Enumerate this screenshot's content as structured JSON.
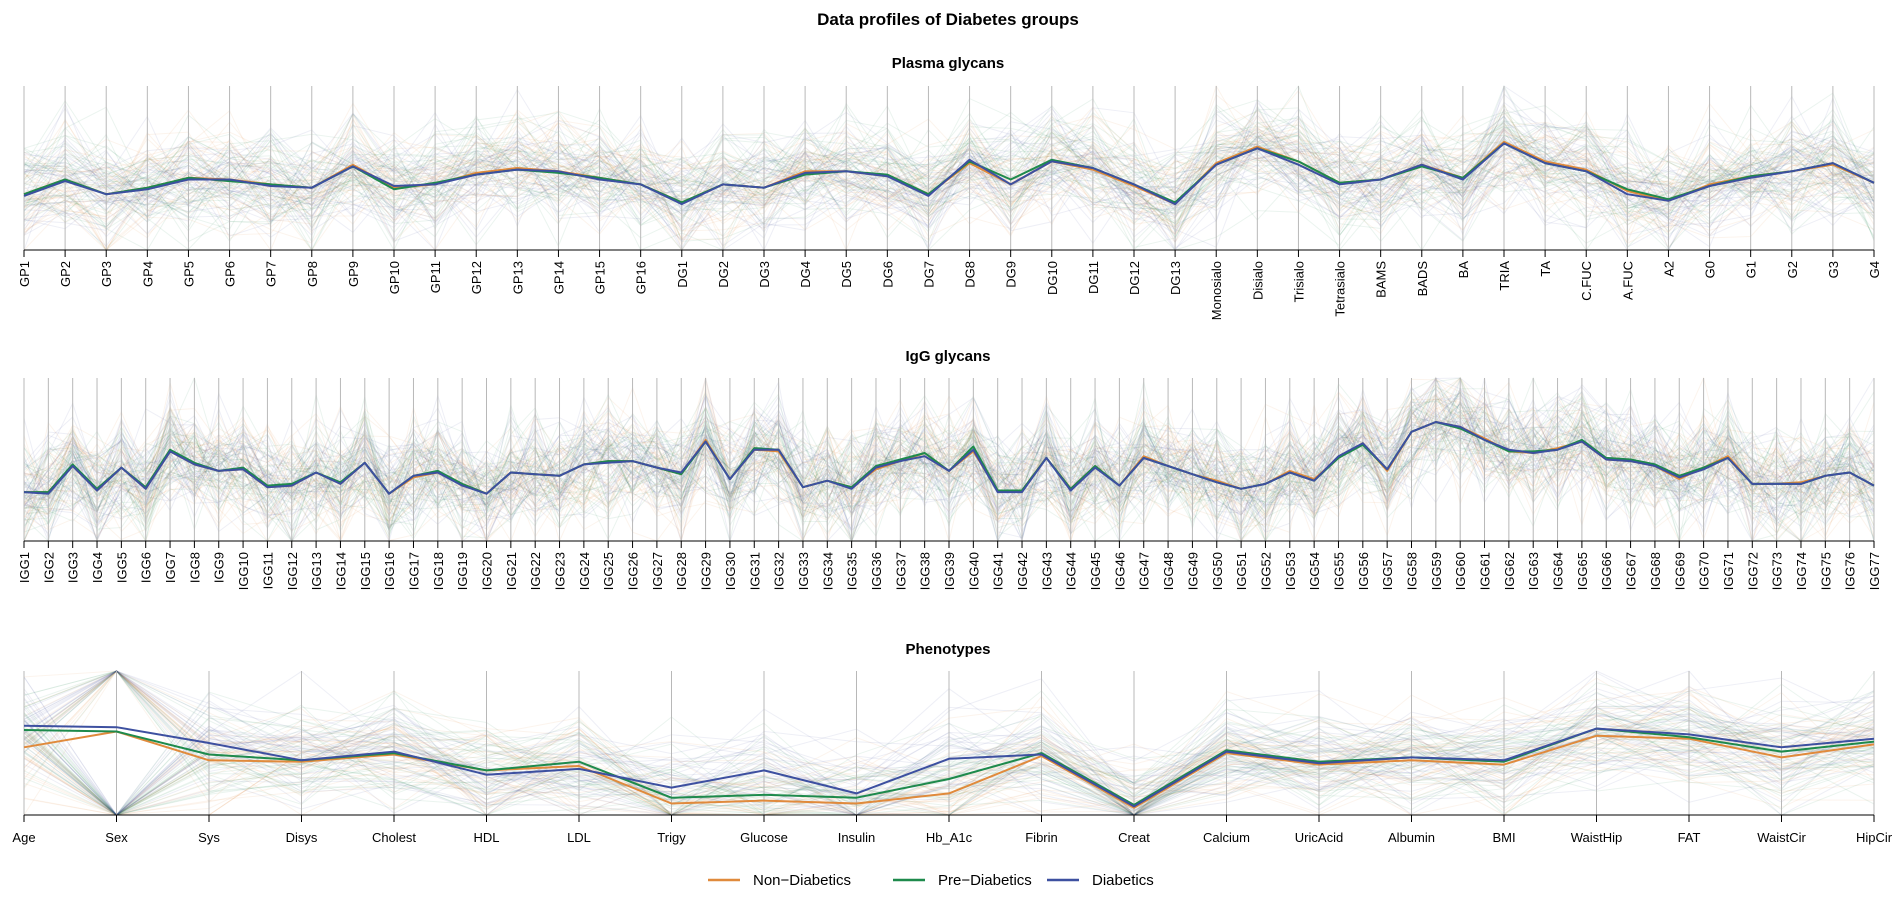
{
  "chart_data": {
    "type": "line",
    "subtype": "parallel-coordinates",
    "title": "Data profiles of Diabetes groups",
    "legend": {
      "placement": "bottom",
      "entries": [
        {
          "name": "Non−Diabetics",
          "color": "#E08A3C"
        },
        {
          "name": "Pre−Diabetics",
          "color": "#1E8A4C"
        },
        {
          "name": "Diabetics",
          "color": "#3D50A0"
        }
      ]
    },
    "panels": [
      {
        "title": "Plasma glycans",
        "ylim": [
          0,
          1
        ],
        "axes": [
          "GP1",
          "GP2",
          "GP3",
          "GP4",
          "GP5",
          "GP6",
          "GP7",
          "GP8",
          "GP9",
          "GP10",
          "GP11",
          "GP12",
          "GP13",
          "GP14",
          "GP15",
          "GP16",
          "DG1",
          "DG2",
          "DG3",
          "DG4",
          "DG5",
          "DG6",
          "DG7",
          "DG8",
          "DG9",
          "DG10",
          "DG11",
          "DG12",
          "DG13",
          "Monosialo",
          "Disialo",
          "Trisialo",
          "Tetrasialo",
          "BAMS",
          "BADS",
          "BA",
          "TRIA",
          "TA",
          "C.FUC",
          "A.FUC",
          "A2",
          "G0",
          "G1",
          "G2",
          "G3",
          "G4"
        ],
        "series": [
          {
            "name": "Non−Diabetics",
            "values": [
              0.34,
              0.43,
              0.34,
              0.38,
              0.44,
              0.43,
              0.4,
              0.38,
              0.52,
              0.38,
              0.4,
              0.47,
              0.5,
              0.48,
              0.44,
              0.4,
              0.29,
              0.4,
              0.38,
              0.48,
              0.48,
              0.45,
              0.34,
              0.53,
              0.4,
              0.54,
              0.49,
              0.39,
              0.28,
              0.53,
              0.63,
              0.54,
              0.41,
              0.43,
              0.52,
              0.44,
              0.66,
              0.54,
              0.49,
              0.36,
              0.3,
              0.4,
              0.45,
              0.48,
              0.52,
              0.41
            ]
          },
          {
            "name": "Pre−Diabetics",
            "values": [
              0.34,
              0.43,
              0.34,
              0.38,
              0.44,
              0.42,
              0.4,
              0.38,
              0.51,
              0.37,
              0.41,
              0.46,
              0.49,
              0.47,
              0.44,
              0.4,
              0.29,
              0.4,
              0.38,
              0.46,
              0.48,
              0.46,
              0.34,
              0.54,
              0.43,
              0.55,
              0.5,
              0.4,
              0.29,
              0.52,
              0.62,
              0.54,
              0.41,
              0.43,
              0.51,
              0.44,
              0.65,
              0.53,
              0.48,
              0.37,
              0.31,
              0.39,
              0.45,
              0.48,
              0.53,
              0.41
            ]
          },
          {
            "name": "Diabetics",
            "values": [
              0.33,
              0.42,
              0.34,
              0.37,
              0.43,
              0.43,
              0.39,
              0.38,
              0.51,
              0.39,
              0.4,
              0.46,
              0.49,
              0.48,
              0.43,
              0.4,
              0.28,
              0.4,
              0.38,
              0.47,
              0.48,
              0.45,
              0.33,
              0.55,
              0.4,
              0.54,
              0.5,
              0.4,
              0.28,
              0.52,
              0.62,
              0.52,
              0.4,
              0.43,
              0.52,
              0.43,
              0.65,
              0.53,
              0.48,
              0.34,
              0.3,
              0.39,
              0.44,
              0.48,
              0.53,
              0.41
            ]
          }
        ]
      },
      {
        "title": "IgG glycans",
        "ylim": [
          0,
          1
        ],
        "axes": [
          "IGG1",
          "IGG2",
          "IGG3",
          "IGG4",
          "IGG5",
          "IGG6",
          "IGG7",
          "IGG8",
          "IGG9",
          "IGG10",
          "IGG11",
          "IGG12",
          "IGG13",
          "IGG14",
          "IGG15",
          "IGG16",
          "IGG17",
          "IGG18",
          "IGG19",
          "IGG20",
          "IGG21",
          "IGG22",
          "IGG23",
          "IGG24",
          "IGG25",
          "IGG26",
          "IGG27",
          "IGG28",
          "IGG29",
          "IGG30",
          "IGG31",
          "IGG32",
          "IGG33",
          "IGG34",
          "IGG35",
          "IGG36",
          "IGG37",
          "IGG38",
          "IGG39",
          "IGG40",
          "IGG41",
          "IGG42",
          "IGG43",
          "IGG44",
          "IGG45",
          "IGG46",
          "IGG47",
          "IGG48",
          "IGG49",
          "IGG50",
          "IGG51",
          "IGG52",
          "IGG53",
          "IGG54",
          "IGG55",
          "IGG56",
          "IGG57",
          "IGG58",
          "IGG59",
          "IGG60",
          "IGG61",
          "IGG62",
          "IGG63",
          "IGG64",
          "IGG65",
          "IGG66",
          "IGG67",
          "IGG68",
          "IGG69",
          "IGG70",
          "IGG71",
          "IGG72",
          "IGG73",
          "IGG74",
          "IGG75",
          "IGG76",
          "IGG77"
        ],
        "series": [
          {
            "name": "Non−Diabetics",
            "values": [
              0.3,
              0.3,
              0.46,
              0.31,
              0.45,
              0.32,
              0.55,
              0.47,
              0.43,
              0.44,
              0.33,
              0.34,
              0.42,
              0.35,
              0.48,
              0.29,
              0.39,
              0.42,
              0.35,
              0.29,
              0.42,
              0.41,
              0.4,
              0.47,
              0.49,
              0.49,
              0.45,
              0.41,
              0.62,
              0.38,
              0.56,
              0.55,
              0.33,
              0.37,
              0.33,
              0.44,
              0.49,
              0.54,
              0.43,
              0.55,
              0.31,
              0.31,
              0.51,
              0.32,
              0.46,
              0.34,
              0.52,
              0.46,
              0.41,
              0.37,
              0.32,
              0.35,
              0.43,
              0.38,
              0.51,
              0.6,
              0.43,
              0.67,
              0.73,
              0.7,
              0.63,
              0.55,
              0.54,
              0.57,
              0.61,
              0.5,
              0.49,
              0.46,
              0.38,
              0.45,
              0.52,
              0.35,
              0.35,
              0.36,
              0.4,
              0.42,
              0.34
            ]
          },
          {
            "name": "Pre−Diabetics",
            "values": [
              0.3,
              0.3,
              0.47,
              0.32,
              0.45,
              0.33,
              0.56,
              0.48,
              0.43,
              0.45,
              0.34,
              0.35,
              0.42,
              0.36,
              0.48,
              0.29,
              0.4,
              0.43,
              0.35,
              0.29,
              0.42,
              0.41,
              0.4,
              0.47,
              0.49,
              0.49,
              0.45,
              0.41,
              0.61,
              0.38,
              0.57,
              0.56,
              0.33,
              0.37,
              0.33,
              0.46,
              0.5,
              0.54,
              0.43,
              0.58,
              0.31,
              0.31,
              0.51,
              0.32,
              0.46,
              0.34,
              0.51,
              0.46,
              0.41,
              0.36,
              0.32,
              0.35,
              0.42,
              0.37,
              0.51,
              0.59,
              0.44,
              0.67,
              0.73,
              0.69,
              0.62,
              0.55,
              0.55,
              0.56,
              0.62,
              0.51,
              0.5,
              0.47,
              0.4,
              0.45,
              0.51,
              0.35,
              0.35,
              0.35,
              0.4,
              0.42,
              0.34
            ]
          },
          {
            "name": "Diabetics",
            "values": [
              0.3,
              0.29,
              0.46,
              0.31,
              0.45,
              0.32,
              0.55,
              0.47,
              0.43,
              0.44,
              0.33,
              0.34,
              0.42,
              0.35,
              0.48,
              0.29,
              0.4,
              0.42,
              0.34,
              0.29,
              0.42,
              0.41,
              0.4,
              0.47,
              0.48,
              0.49,
              0.45,
              0.42,
              0.61,
              0.38,
              0.56,
              0.56,
              0.33,
              0.37,
              0.32,
              0.45,
              0.49,
              0.52,
              0.43,
              0.56,
              0.3,
              0.3,
              0.51,
              0.31,
              0.45,
              0.34,
              0.51,
              0.46,
              0.41,
              0.36,
              0.32,
              0.35,
              0.42,
              0.37,
              0.52,
              0.6,
              0.44,
              0.67,
              0.73,
              0.7,
              0.62,
              0.56,
              0.54,
              0.56,
              0.61,
              0.5,
              0.49,
              0.46,
              0.39,
              0.44,
              0.51,
              0.35,
              0.35,
              0.35,
              0.4,
              0.42,
              0.34
            ]
          }
        ]
      },
      {
        "title": "Phenotypes",
        "ylim": [
          0,
          1
        ],
        "axes": [
          "Age",
          "Sex",
          "Sys",
          "Disys",
          "Cholest",
          "HDL",
          "LDL",
          "Trigy",
          "Glucose",
          "Insulin",
          "Hb_A1c",
          "Fibrin",
          "Creat",
          "Calcium",
          "UricAcid",
          "Albumin",
          "BMI",
          "WaistHip",
          "FAT",
          "WaistCir",
          "HipCir"
        ],
        "series": [
          {
            "name": "Non−Diabetics",
            "values": [
              0.47,
              0.58,
              0.38,
              0.37,
              0.42,
              0.31,
              0.34,
              0.08,
              0.1,
              0.08,
              0.15,
              0.41,
              0.05,
              0.43,
              0.35,
              0.38,
              0.35,
              0.55,
              0.53,
              0.4,
              0.49
            ]
          },
          {
            "name": "Pre−Diabetics",
            "values": [
              0.59,
              0.58,
              0.42,
              0.38,
              0.43,
              0.31,
              0.37,
              0.12,
              0.14,
              0.12,
              0.25,
              0.43,
              0.07,
              0.45,
              0.37,
              0.4,
              0.37,
              0.6,
              0.54,
              0.44,
              0.51
            ]
          },
          {
            "name": "Diabetics",
            "values": [
              0.62,
              0.61,
              0.5,
              0.38,
              0.44,
              0.28,
              0.32,
              0.19,
              0.31,
              0.15,
              0.39,
              0.42,
              0.06,
              0.44,
              0.36,
              0.4,
              0.38,
              0.6,
              0.56,
              0.47,
              0.53
            ]
          }
        ]
      }
    ]
  }
}
